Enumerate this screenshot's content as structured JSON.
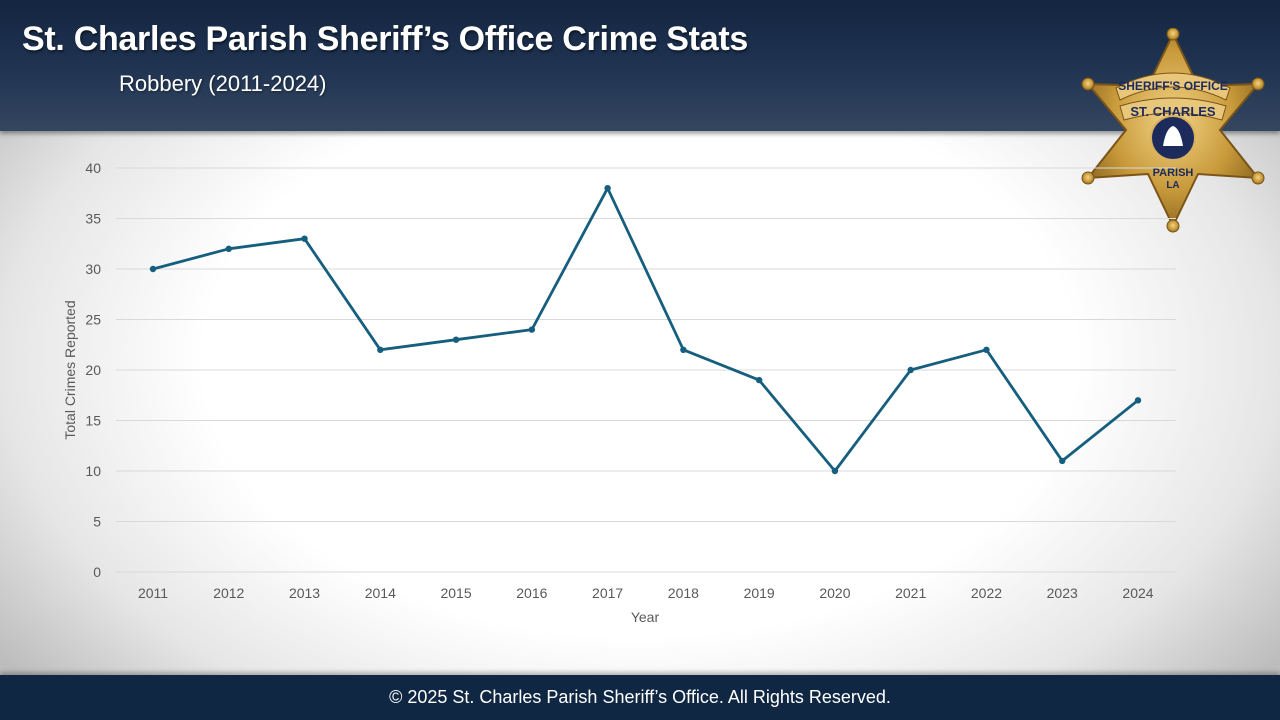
{
  "header": {
    "title": "St. Charles Parish Sheriff’s Office Crime Stats",
    "subtitle": "Robbery  (2011-2024)"
  },
  "badge": {
    "icon": "sheriff-star-badge-icon",
    "text_top": "SHERIFF'S OFFICE",
    "text_mid": "ST. CHARLES",
    "text_low": "PARISH",
    "text_bottom": "LA",
    "colors": {
      "gold": "#c89a3a",
      "navy": "#1d2a5c"
    }
  },
  "footer": {
    "text": "© 2025 St. Charles Parish Sheriff’s Office. All Rights Reserved."
  },
  "chart_data": {
    "type": "line",
    "title": "",
    "xlabel": "Year",
    "ylabel": "Total Crimes Reported",
    "categories": [
      "2011",
      "2012",
      "2013",
      "2014",
      "2015",
      "2016",
      "2017",
      "2018",
      "2019",
      "2020",
      "2021",
      "2022",
      "2023",
      "2024"
    ],
    "series": [
      {
        "name": "Robbery",
        "values": [
          30,
          32,
          33,
          22,
          23,
          24,
          38,
          22,
          19,
          10,
          20,
          22,
          11,
          17
        ],
        "color": "#165e7e"
      }
    ],
    "ylim": [
      0,
      40
    ],
    "yticks": [
      "0",
      "5",
      "10",
      "15",
      "20",
      "25",
      "30",
      "35",
      "40"
    ],
    "grid": true,
    "legend": "none"
  }
}
